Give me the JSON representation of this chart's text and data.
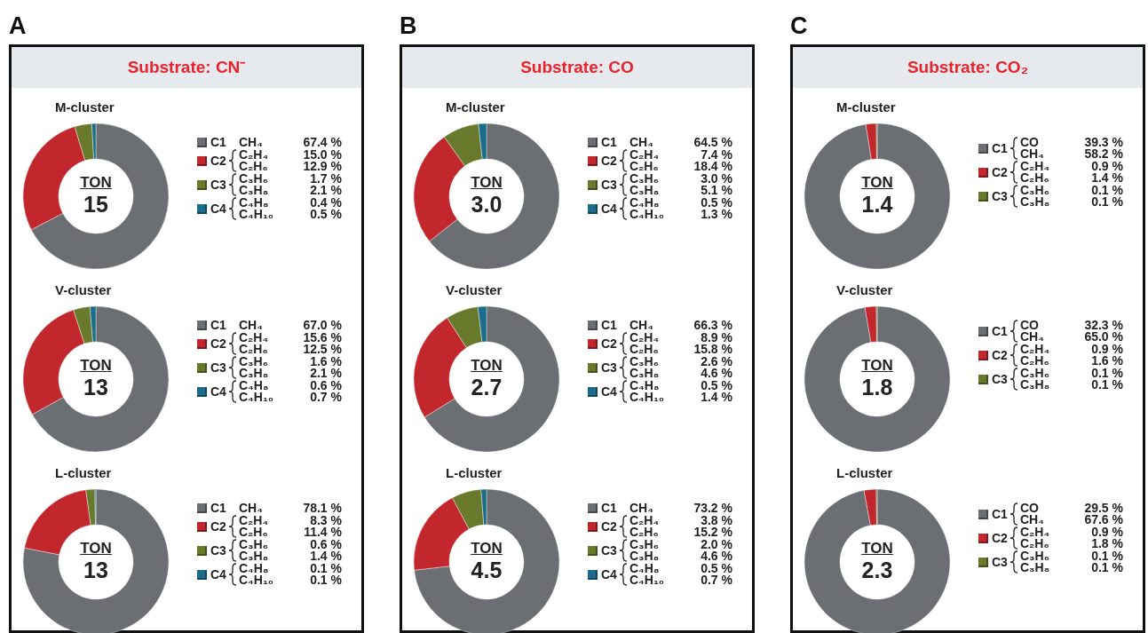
{
  "chart_data": [
    {
      "type": "donut",
      "legend": "right",
      "title": "M-cluster",
      "subtitle": "Substrate: CN⁻",
      "categories": [
        "C1",
        "C2",
        "C3",
        "C4"
      ],
      "values": [
        67.4,
        27.9,
        3.8,
        0.9
      ],
      "colors": [
        "#6b6e72",
        "#c1272d",
        "#6a7a2c",
        "#1c6d8c"
      ],
      "annotations": [
        "A",
        "TON",
        "15",
        {
          "text": "CH₄",
          "x": "C1"
        },
        {
          "text": "67.4 %",
          "x": "C1"
        },
        {
          "text": "C₂H₄",
          "x": "C2"
        },
        {
          "text": "15.0 %",
          "x": "C2"
        },
        {
          "text": "C₂H₆",
          "x": "C2"
        },
        {
          "text": "12.9 %",
          "x": "C2"
        },
        {
          "text": "C₃H₆",
          "x": "C3"
        },
        {
          "text": "1.7 %",
          "x": "C3"
        },
        {
          "text": "C₃H₈",
          "x": "C3"
        },
        {
          "text": "2.1 %",
          "x": "C3"
        },
        {
          "text": "C₄H₈",
          "x": "C4"
        },
        {
          "text": "0.4 %",
          "x": "C4"
        },
        {
          "text": "C₄H₁₀",
          "x": "C4"
        },
        {
          "text": "0.5 %",
          "x": "C4"
        }
      ]
    },
    {
      "type": "donut",
      "legend": "right",
      "title": "V-cluster",
      "categories": [
        "C1",
        "C2",
        "C3",
        "C4"
      ],
      "values": [
        67.0,
        28.1,
        3.7,
        1.3
      ],
      "colors": [
        "#6b6e72",
        "#c1272d",
        "#6a7a2c",
        "#1c6d8c"
      ],
      "annotations": [
        "TON",
        "13",
        {
          "text": "CH₄",
          "x": "C1"
        },
        {
          "text": "67.0 %",
          "x": "C1"
        },
        {
          "text": "C₂H₄",
          "x": "C2"
        },
        {
          "text": "15.6 %",
          "x": "C2"
        },
        {
          "text": "C₂H₆",
          "x": "C2"
        },
        {
          "text": "12.5 %",
          "x": "C2"
        },
        {
          "text": "C₃H₆",
          "x": "C3"
        },
        {
          "text": "1.6 %",
          "x": "C3"
        },
        {
          "text": "C₃H₈",
          "x": "C3"
        },
        {
          "text": "2.1 %",
          "x": "C3"
        },
        {
          "text": "C₄H₈",
          "x": "C4"
        },
        {
          "text": "0.6 %",
          "x": "C4"
        },
        {
          "text": "C₄H₁₀",
          "x": "C4"
        },
        {
          "text": "0.7 %",
          "x": "C4"
        }
      ]
    },
    {
      "type": "donut",
      "legend": "right",
      "title": "L-cluster",
      "categories": [
        "C1",
        "C2",
        "C3",
        "C4"
      ],
      "values": [
        78.1,
        19.7,
        2.0,
        0.2
      ],
      "colors": [
        "#6b6e72",
        "#c1272d",
        "#6a7a2c",
        "#1c6d8c"
      ],
      "annotations": [
        "TON",
        "13",
        {
          "text": "CH₄",
          "x": "C1"
        },
        {
          "text": "78.1 %",
          "x": "C1"
        },
        {
          "text": "C₂H₄",
          "x": "C2"
        },
        {
          "text": "8.3 %",
          "x": "C2"
        },
        {
          "text": "C₂H₆",
          "x": "C2"
        },
        {
          "text": "11.4 %",
          "x": "C2"
        },
        {
          "text": "C₃H₆",
          "x": "C3"
        },
        {
          "text": "0.6 %",
          "x": "C3"
        },
        {
          "text": "C₃H₈",
          "x": "C3"
        },
        {
          "text": "1.4 %",
          "x": "C3"
        },
        {
          "text": "C₄H₈",
          "x": "C4"
        },
        {
          "text": "0.1 %",
          "x": "C4"
        },
        {
          "text": "C₄H₁₀",
          "x": "C4"
        },
        {
          "text": "0.1 %",
          "x": "C4"
        }
      ]
    },
    {
      "type": "donut",
      "legend": "right",
      "title": "M-cluster",
      "subtitle": "Substrate: CO",
      "categories": [
        "C1",
        "C2",
        "C3",
        "C4"
      ],
      "values": [
        64.5,
        25.8,
        8.1,
        1.8
      ],
      "colors": [
        "#6b6e72",
        "#c1272d",
        "#6a7a2c",
        "#1c6d8c"
      ],
      "annotations": [
        "B",
        "TON",
        "3.0",
        {
          "text": "CH₄",
          "x": "C1"
        },
        {
          "text": "64.5 %",
          "x": "C1"
        },
        {
          "text": "C₂H₄",
          "x": "C2"
        },
        {
          "text": "7.4 %",
          "x": "C2"
        },
        {
          "text": "C₂H₆",
          "x": "C2"
        },
        {
          "text": "18.4 %",
          "x": "C2"
        },
        {
          "text": "C₃H₆",
          "x": "C3"
        },
        {
          "text": "3.0 %",
          "x": "C3"
        },
        {
          "text": "C₃H₈",
          "x": "C3"
        },
        {
          "text": "5.1 %",
          "x": "C3"
        },
        {
          "text": "C₄H₈",
          "x": "C4"
        },
        {
          "text": "0.5 %",
          "x": "C4"
        },
        {
          "text": "C₄H₁₀",
          "x": "C4"
        },
        {
          "text": "1.3 %",
          "x": "C4"
        }
      ]
    },
    {
      "type": "donut",
      "legend": "right",
      "title": "V-cluster",
      "categories": [
        "C1",
        "C2",
        "C3",
        "C4"
      ],
      "values": [
        66.3,
        24.7,
        7.2,
        1.9
      ],
      "colors": [
        "#6b6e72",
        "#c1272d",
        "#6a7a2c",
        "#1c6d8c"
      ],
      "annotations": [
        "TON",
        "2.7",
        {
          "text": "CH₄",
          "x": "C1"
        },
        {
          "text": "66.3 %",
          "x": "C1"
        },
        {
          "text": "C₂H₄",
          "x": "C2"
        },
        {
          "text": "8.9 %",
          "x": "C2"
        },
        {
          "text": "C₂H₆",
          "x": "C2"
        },
        {
          "text": "15.8 %",
          "x": "C2"
        },
        {
          "text": "C₃H₆",
          "x": "C3"
        },
        {
          "text": "2.6 %",
          "x": "C3"
        },
        {
          "text": "C₃H₈",
          "x": "C3"
        },
        {
          "text": "4.6 %",
          "x": "C3"
        },
        {
          "text": "C₄H₈",
          "x": "C4"
        },
        {
          "text": "0.5 %",
          "x": "C4"
        },
        {
          "text": "C₄H₁₀",
          "x": "C4"
        },
        {
          "text": "1.4 %",
          "x": "C4"
        }
      ]
    },
    {
      "type": "donut",
      "legend": "right",
      "title": "L-cluster",
      "categories": [
        "C1",
        "C2",
        "C3",
        "C4"
      ],
      "values": [
        73.2,
        19.0,
        6.6,
        1.2
      ],
      "colors": [
        "#6b6e72",
        "#c1272d",
        "#6a7a2c",
        "#1c6d8c"
      ],
      "annotations": [
        "TON",
        "4.5",
        {
          "text": "CH₄",
          "x": "C1"
        },
        {
          "text": "73.2 %",
          "x": "C1"
        },
        {
          "text": "C₂H₄",
          "x": "C2"
        },
        {
          "text": "3.8 %",
          "x": "C2"
        },
        {
          "text": "C₂H₆",
          "x": "C2"
        },
        {
          "text": "15.2 %",
          "x": "C2"
        },
        {
          "text": "C₃H₆",
          "x": "C3"
        },
        {
          "text": "2.0 %",
          "x": "C3"
        },
        {
          "text": "C₃H₈",
          "x": "C3"
        },
        {
          "text": "4.6 %",
          "x": "C3"
        },
        {
          "text": "C₄H₈",
          "x": "C4"
        },
        {
          "text": "0.5 %",
          "x": "C4"
        },
        {
          "text": "C₄H₁₀",
          "x": "C4"
        },
        {
          "text": "0.7 %",
          "x": "C4"
        }
      ]
    },
    {
      "type": "donut",
      "legend": "right",
      "title": "M-cluster",
      "subtitle": "Substrate: CO₂",
      "categories": [
        "C1",
        "C2",
        "C3"
      ],
      "values": [
        97.5,
        2.3,
        0.2
      ],
      "colors": [
        "#6b6e72",
        "#c1272d",
        "#6a7a2c"
      ],
      "annotations": [
        "C",
        "TON",
        "1.4",
        {
          "text": "CO",
          "x": "C1"
        },
        {
          "text": "39.3 %",
          "x": "C1"
        },
        {
          "text": "CH₄",
          "x": "C1"
        },
        {
          "text": "58.2 %",
          "x": "C1"
        },
        {
          "text": "C₂H₄",
          "x": "C2"
        },
        {
          "text": "0.9 %",
          "x": "C2"
        },
        {
          "text": "C₂H₆",
          "x": "C2"
        },
        {
          "text": "1.4 %",
          "x": "C2"
        },
        {
          "text": "C₃H₆",
          "x": "C3"
        },
        {
          "text": "0.1 %",
          "x": "C3"
        },
        {
          "text": "C₃H₈",
          "x": "C3"
        },
        {
          "text": "0.1 %",
          "x": "C3"
        }
      ]
    },
    {
      "type": "donut",
      "legend": "right",
      "title": "V-cluster",
      "categories": [
        "C1",
        "C2",
        "C3"
      ],
      "values": [
        97.3,
        2.5,
        0.2
      ],
      "colors": [
        "#6b6e72",
        "#c1272d",
        "#6a7a2c"
      ],
      "annotations": [
        "TON",
        "1.8",
        {
          "text": "CO",
          "x": "C1"
        },
        {
          "text": "32.3 %",
          "x": "C1"
        },
        {
          "text": "CH₄",
          "x": "C1"
        },
        {
          "text": "65.0 %",
          "x": "C1"
        },
        {
          "text": "C₂H₄",
          "x": "C2"
        },
        {
          "text": "0.9 %",
          "x": "C2"
        },
        {
          "text": "C₂H₆",
          "x": "C2"
        },
        {
          "text": "1.6 %",
          "x": "C2"
        },
        {
          "text": "C₃H₆",
          "x": "C3"
        },
        {
          "text": "0.1 %",
          "x": "C3"
        },
        {
          "text": "C₃H₈",
          "x": "C3"
        },
        {
          "text": "0.1 %",
          "x": "C3"
        }
      ]
    },
    {
      "type": "donut",
      "legend": "right",
      "title": "L-cluster",
      "categories": [
        "C1",
        "C2",
        "C3"
      ],
      "values": [
        97.1,
        2.7,
        0.2
      ],
      "colors": [
        "#6b6e72",
        "#c1272d",
        "#6a7a2c"
      ],
      "annotations": [
        "TON",
        "2.3",
        {
          "text": "CO",
          "x": "C1"
        },
        {
          "text": "29.5 %",
          "x": "C1"
        },
        {
          "text": "CH₄",
          "x": "C1"
        },
        {
          "text": "67.6 %",
          "x": "C1"
        },
        {
          "text": "C₂H₄",
          "x": "C2"
        },
        {
          "text": "0.9 %",
          "x": "C2"
        },
        {
          "text": "C₂H₆",
          "x": "C2"
        },
        {
          "text": "1.8 %",
          "x": "C2"
        },
        {
          "text": "C₃H₆",
          "x": "C3"
        },
        {
          "text": "0.1 %",
          "x": "C3"
        },
        {
          "text": "C₃H₈",
          "x": "C3"
        },
        {
          "text": "0.1 %",
          "x": "C3"
        }
      ]
    }
  ]
}
